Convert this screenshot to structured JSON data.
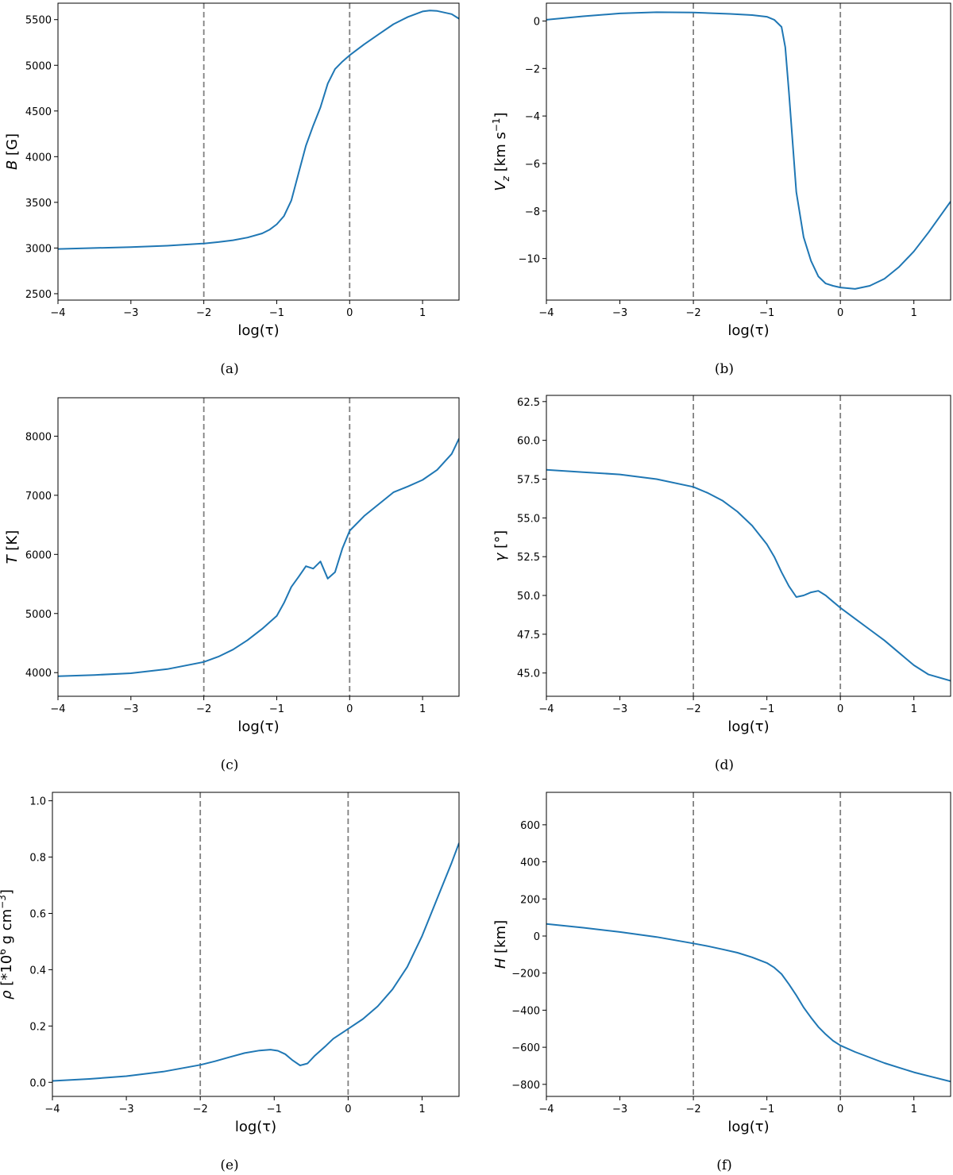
{
  "chart_data": [
    {
      "id": "a",
      "type": "line",
      "caption": "(a)",
      "xlabel": "log(τ)",
      "ylabel_main": "B",
      "ylabel_unit": " [G]",
      "xlim": [
        -4,
        1.5
      ],
      "ylim": [
        2430,
        5680
      ],
      "xticks": [
        -4,
        -3,
        -2,
        -1,
        0,
        1
      ],
      "xtick_labels": [
        "−4",
        "−3",
        "−2",
        "−1",
        "0",
        "1"
      ],
      "yticks": [
        2500,
        3000,
        3500,
        4000,
        4500,
        5000,
        5500
      ],
      "ytick_labels": [
        "2500",
        "3000",
        "3500",
        "4000",
        "4500",
        "5000",
        "5500"
      ],
      "vlines": [
        -2,
        0
      ],
      "x": [
        -4.0,
        -3.5,
        -3.0,
        -2.5,
        -2.0,
        -1.8,
        -1.6,
        -1.4,
        -1.2,
        -1.1,
        -1.0,
        -0.9,
        -0.8,
        -0.7,
        -0.6,
        -0.5,
        -0.4,
        -0.3,
        -0.2,
        -0.1,
        0.0,
        0.2,
        0.4,
        0.6,
        0.8,
        1.0,
        1.1,
        1.2,
        1.4,
        1.5
      ],
      "y": [
        2990,
        3000,
        3010,
        3025,
        3050,
        3065,
        3085,
        3115,
        3160,
        3200,
        3260,
        3350,
        3520,
        3820,
        4120,
        4340,
        4540,
        4800,
        4960,
        5040,
        5110,
        5230,
        5340,
        5450,
        5530,
        5590,
        5600,
        5595,
        5560,
        5510
      ]
    },
    {
      "id": "b",
      "type": "line",
      "caption": "(b)",
      "xlabel": "log(τ)",
      "ylabel_main": "V",
      "ylabel_sub": "z",
      "ylabel_unit": " [km s",
      "ylabel_sup": "−1",
      "ylabel_close": "]",
      "xlim": [
        -4,
        1.5
      ],
      "ylim": [
        -11.75,
        0.75
      ],
      "xticks": [
        -4,
        -3,
        -2,
        -1,
        0,
        1
      ],
      "xtick_labels": [
        "−4",
        "−3",
        "−2",
        "−1",
        "0",
        "1"
      ],
      "yticks": [
        -10,
        -8,
        -6,
        -4,
        -2,
        0
      ],
      "ytick_labels": [
        "−10",
        "−8",
        "−6",
        "−4",
        "−2",
        "0"
      ],
      "vlines": [
        -2,
        0
      ],
      "x": [
        -4.0,
        -3.5,
        -3.0,
        -2.5,
        -2.0,
        -1.5,
        -1.2,
        -1.0,
        -0.9,
        -0.8,
        -0.75,
        -0.7,
        -0.6,
        -0.5,
        -0.4,
        -0.3,
        -0.2,
        -0.1,
        0.0,
        0.2,
        0.4,
        0.6,
        0.8,
        1.0,
        1.2,
        1.5
      ],
      "y": [
        0.05,
        0.2,
        0.32,
        0.37,
        0.36,
        0.3,
        0.25,
        0.18,
        0.05,
        -0.25,
        -1.1,
        -3.0,
        -7.2,
        -9.1,
        -10.1,
        -10.75,
        -11.05,
        -11.15,
        -11.22,
        -11.28,
        -11.15,
        -10.85,
        -10.35,
        -9.7,
        -8.9,
        -7.6
      ]
    },
    {
      "id": "c",
      "type": "line",
      "caption": "(c)",
      "xlabel": "log(τ)",
      "ylabel_main": "T",
      "ylabel_unit": " [K]",
      "xlim": [
        -4,
        1.5
      ],
      "ylim": [
        3600,
        8650
      ],
      "xticks": [
        -4,
        -3,
        -2,
        -1,
        0,
        1
      ],
      "xtick_labels": [
        "−4",
        "−3",
        "−2",
        "−1",
        "0",
        "1"
      ],
      "yticks": [
        4000,
        5000,
        6000,
        7000,
        8000
      ],
      "ytick_labels": [
        "4000",
        "5000",
        "6000",
        "7000",
        "8000"
      ],
      "vlines": [
        -2,
        0
      ],
      "x": [
        -4.0,
        -3.5,
        -3.0,
        -2.5,
        -2.0,
        -1.8,
        -1.6,
        -1.4,
        -1.2,
        -1.0,
        -0.9,
        -0.8,
        -0.7,
        -0.6,
        -0.5,
        -0.4,
        -0.3,
        -0.2,
        -0.1,
        0.0,
        0.2,
        0.4,
        0.6,
        0.8,
        1.0,
        1.2,
        1.4,
        1.5
      ],
      "y": [
        3940,
        3960,
        3990,
        4060,
        4180,
        4270,
        4390,
        4550,
        4740,
        4960,
        5180,
        5450,
        5620,
        5800,
        5760,
        5880,
        5590,
        5700,
        6100,
        6400,
        6650,
        6850,
        7050,
        7150,
        7260,
        7430,
        7700,
        7960
      ]
    },
    {
      "id": "d",
      "type": "line",
      "caption": "(d)",
      "xlabel": "log(τ)",
      "ylabel_main": "γ",
      "ylabel_unit": " [°]",
      "xlim": [
        -4,
        1.5
      ],
      "ylim": [
        43.5,
        62.9
      ],
      "xticks": [
        -4,
        -3,
        -2,
        -1,
        0,
        1
      ],
      "xtick_labels": [
        "−4",
        "−3",
        "−2",
        "−1",
        "0",
        "1"
      ],
      "yticks": [
        45.0,
        47.5,
        50.0,
        52.5,
        55.0,
        57.5,
        60.0,
        62.5
      ],
      "ytick_labels": [
        "45.0",
        "47.5",
        "50.0",
        "52.5",
        "55.0",
        "57.5",
        "60.0",
        "62.5"
      ],
      "vlines": [
        -2,
        0
      ],
      "x": [
        -4.0,
        -3.5,
        -3.0,
        -2.5,
        -2.0,
        -1.8,
        -1.6,
        -1.4,
        -1.2,
        -1.0,
        -0.9,
        -0.8,
        -0.7,
        -0.6,
        -0.5,
        -0.4,
        -0.3,
        -0.2,
        -0.1,
        0.0,
        0.2,
        0.4,
        0.6,
        0.8,
        1.0,
        1.2,
        1.5
      ],
      "y": [
        58.1,
        57.95,
        57.8,
        57.5,
        57.0,
        56.6,
        56.1,
        55.4,
        54.5,
        53.3,
        52.5,
        51.5,
        50.6,
        49.9,
        50.0,
        50.2,
        50.3,
        50.0,
        49.6,
        49.2,
        48.5,
        47.8,
        47.1,
        46.3,
        45.5,
        44.9,
        44.5
      ]
    },
    {
      "id": "e",
      "type": "line",
      "caption": "(e)",
      "xlabel": "log(τ)",
      "ylabel_main": "ρ",
      "ylabel_unit": " [*10",
      "ylabel_sup": "6",
      "ylabel_mid": " g cm",
      "ylabel_sup2": "−3",
      "ylabel_close": "]",
      "xlim": [
        -4,
        1.5
      ],
      "ylim": [
        -0.05,
        1.03
      ],
      "xticks": [
        -4,
        -3,
        -2,
        -1,
        0,
        1
      ],
      "xtick_labels": [
        "−4",
        "−3",
        "−2",
        "−1",
        "0",
        "1"
      ],
      "yticks": [
        0.0,
        0.2,
        0.4,
        0.6,
        0.8,
        1.0
      ],
      "ytick_labels": [
        "0.0",
        "0.2",
        "0.4",
        "0.6",
        "0.8",
        "1.0"
      ],
      "vlines": [
        -2,
        0
      ],
      "x": [
        -4.0,
        -3.5,
        -3.0,
        -2.5,
        -2.0,
        -1.8,
        -1.6,
        -1.4,
        -1.2,
        -1.05,
        -0.95,
        -0.85,
        -0.75,
        -0.65,
        -0.55,
        -0.45,
        -0.3,
        -0.2,
        0.0,
        0.2,
        0.4,
        0.6,
        0.8,
        1.0,
        1.2,
        1.4,
        1.5
      ],
      "y": [
        0.005,
        0.012,
        0.022,
        0.038,
        0.062,
        0.075,
        0.09,
        0.104,
        0.113,
        0.116,
        0.112,
        0.1,
        0.078,
        0.06,
        0.067,
        0.095,
        0.13,
        0.155,
        0.19,
        0.225,
        0.27,
        0.33,
        0.41,
        0.52,
        0.65,
        0.78,
        0.85
      ]
    },
    {
      "id": "f",
      "type": "line",
      "caption": "(f)",
      "xlabel": "log(τ)",
      "ylabel_main": "H",
      "ylabel_unit": " [km]",
      "xlim": [
        -4,
        1.5
      ],
      "ylim": [
        -865,
        775
      ],
      "xticks": [
        -4,
        -3,
        -2,
        -1,
        0,
        1
      ],
      "xtick_labels": [
        "−4",
        "−3",
        "−2",
        "−1",
        "0",
        "1"
      ],
      "yticks": [
        -800,
        -600,
        -400,
        -200,
        0,
        200,
        400,
        600
      ],
      "ytick_labels": [
        "−800",
        "−600",
        "−400",
        "−200",
        "0",
        "200",
        "400",
        "600"
      ],
      "vlines": [
        -2,
        0
      ],
      "x": [
        -4.0,
        -3.5,
        -3.0,
        -2.5,
        -2.0,
        -1.8,
        -1.6,
        -1.4,
        -1.2,
        -1.0,
        -0.9,
        -0.8,
        -0.7,
        -0.6,
        -0.5,
        -0.4,
        -0.3,
        -0.2,
        -0.1,
        0.0,
        0.2,
        0.4,
        0.6,
        0.8,
        1.0,
        1.2,
        1.5
      ],
      "y": [
        65,
        45,
        22,
        -5,
        -40,
        -55,
        -72,
        -90,
        -115,
        -145,
        -170,
        -205,
        -260,
        -320,
        -385,
        -440,
        -490,
        -530,
        -565,
        -590,
        -625,
        -655,
        -685,
        -710,
        -735,
        -755,
        -785
      ]
    }
  ]
}
